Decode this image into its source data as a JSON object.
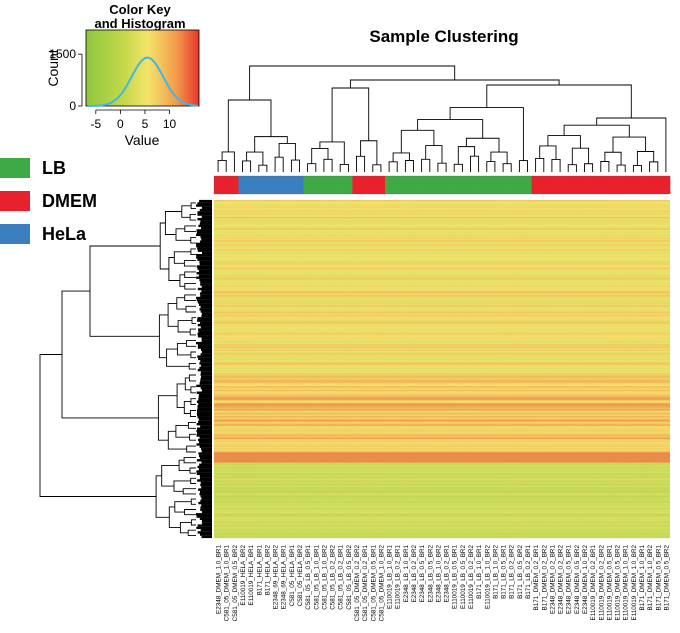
{
  "chart_data": {
    "type": "heatmap",
    "title": "Sample Clustering",
    "color_key": {
      "title_line1": "Color Key",
      "title_line2": "and Histogram",
      "xlabel": "Value",
      "ylabel": "Count",
      "x_ticks": [
        "-5",
        "0",
        "5",
        "10"
      ],
      "x_tick_values": [
        -5,
        0,
        5,
        10
      ],
      "x_range": [
        -7,
        16
      ],
      "y_ticks": [
        "0",
        "1500"
      ],
      "y_tick_values": [
        0,
        1500
      ],
      "y_range": [
        0,
        2200
      ],
      "histogram_peak": 1400,
      "histogram_center": 5.5,
      "histogram_sd": 3.2
    },
    "legend": [
      {
        "label": "LB",
        "color": "#3fa945"
      },
      {
        "label": "DMEM",
        "color": "#e8212d"
      },
      {
        "label": "HeLa",
        "color": "#3b7fbf"
      }
    ],
    "group_colors": {
      "LB": "#3fa945",
      "DMEM": "#e8212d",
      "HeLa": "#3b7fbf"
    },
    "samples": [
      {
        "label": "E2348_DMEM_1.0_BR1",
        "group": "DMEM"
      },
      {
        "label": "C581_05_DMEM_1.0_BR1",
        "group": "DMEM"
      },
      {
        "label": "C581_05_DMEM_0.5_BR2",
        "group": "DMEM"
      },
      {
        "label": "E110019_HELA_BR2",
        "group": "HeLa"
      },
      {
        "label": "E110019_HELA_BR1",
        "group": "HeLa"
      },
      {
        "label": "B171_HELA_BR1",
        "group": "HeLa"
      },
      {
        "label": "B171_HELA_BR2",
        "group": "HeLa"
      },
      {
        "label": "E2348_69_HELA_BR2",
        "group": "HeLa"
      },
      {
        "label": "E2348_69_HELA_BR1",
        "group": "HeLa"
      },
      {
        "label": "C581_05_HELA_BR1",
        "group": "HeLa"
      },
      {
        "label": "C581_05_HELA_BR2",
        "group": "HeLa"
      },
      {
        "label": "C581_05_LB_0.5_BR1",
        "group": "LB"
      },
      {
        "label": "C581_05_LB_1.0_BR1",
        "group": "LB"
      },
      {
        "label": "C581_05_LB_1.0_BR2",
        "group": "LB"
      },
      {
        "label": "C581_05_LB_0.2_BR2",
        "group": "LB"
      },
      {
        "label": "C581_05_LB_0.2_BR1",
        "group": "LB"
      },
      {
        "label": "C581_05_LB_0.5_BR2",
        "group": "LB"
      },
      {
        "label": "C581_05_DMEM_0.2_BR2",
        "group": "DMEM"
      },
      {
        "label": "C581_05_DMEM_0.2_BR1",
        "group": "DMEM"
      },
      {
        "label": "C581_05_DMEM_0.5_BR1",
        "group": "DMEM"
      },
      {
        "label": "C581_05_DMEM_1.0_BR2",
        "group": "DMEM"
      },
      {
        "label": "E110019_LB_1.0_BR1",
        "group": "LB"
      },
      {
        "label": "E110019_LB_0.2_BR1",
        "group": "LB"
      },
      {
        "label": "E2348_LB_1.0_BR1",
        "group": "LB"
      },
      {
        "label": "E2348_LB_0.2_BR2",
        "group": "LB"
      },
      {
        "label": "E2348_LB_0.5_BR1",
        "group": "LB"
      },
      {
        "label": "E2348_LB_0.5_BR2",
        "group": "LB"
      },
      {
        "label": "E2348_LB_1.0_BR2",
        "group": "LB"
      },
      {
        "label": "E2348_LB_0.2_BR1",
        "group": "LB"
      },
      {
        "label": "E110019_LB_0.5_BR1",
        "group": "LB"
      },
      {
        "label": "E110019_LB_0.5_BR2",
        "group": "LB"
      },
      {
        "label": "E110019_LB_0.2_BR2",
        "group": "LB"
      },
      {
        "label": "B171_LB_1.0_BR1",
        "group": "LB"
      },
      {
        "label": "E110019_LB_1.0_BR2",
        "group": "LB"
      },
      {
        "label": "B171_LB_1.0_BR2",
        "group": "LB"
      },
      {
        "label": "B171_LB_0.5_BR1",
        "group": "LB"
      },
      {
        "label": "B171_LB_0.2_BR2",
        "group": "LB"
      },
      {
        "label": "B171_LB_0.5_BR2",
        "group": "LB"
      },
      {
        "label": "B171_LB_0.2_BR1",
        "group": "LB"
      },
      {
        "label": "B171_DMEM_0.2_BR1",
        "group": "DMEM"
      },
      {
        "label": "B171_DMEM_0.2_BR2",
        "group": "DMEM"
      },
      {
        "label": "E2348_DMEM_0.2_BR1",
        "group": "DMEM"
      },
      {
        "label": "E2348_DMEM_0.2_BR2",
        "group": "DMEM"
      },
      {
        "label": "E2348_DMEM_0.5_BR1",
        "group": "DMEM"
      },
      {
        "label": "E2348_DMEM_0.5_BR2",
        "group": "DMEM"
      },
      {
        "label": "E2348_DMEM_1.0_BR2",
        "group": "DMEM"
      },
      {
        "label": "E110019_DMEM_0.2_BR1",
        "group": "DMEM"
      },
      {
        "label": "E110019_DMEM_0.2_BR2",
        "group": "DMEM"
      },
      {
        "label": "E110019_DMEM_0.5_BR1",
        "group": "DMEM"
      },
      {
        "label": "E110019_DMEM_0.5_BR2",
        "group": "DMEM"
      },
      {
        "label": "E110019_DMEM_1.0_BR1",
        "group": "DMEM"
      },
      {
        "label": "E110019_DMEM_1.0_BR2",
        "group": "DMEM"
      },
      {
        "label": "B171_DMEM_1.0_BR1",
        "group": "DMEM"
      },
      {
        "label": "B171_DMEM_1.0_BR2",
        "group": "DMEM"
      },
      {
        "label": "B171_DMEM_0.5_BR1",
        "group": "DMEM"
      },
      {
        "label": "B171_DMEM_0.5_BR2",
        "group": "DMEM"
      }
    ]
  }
}
